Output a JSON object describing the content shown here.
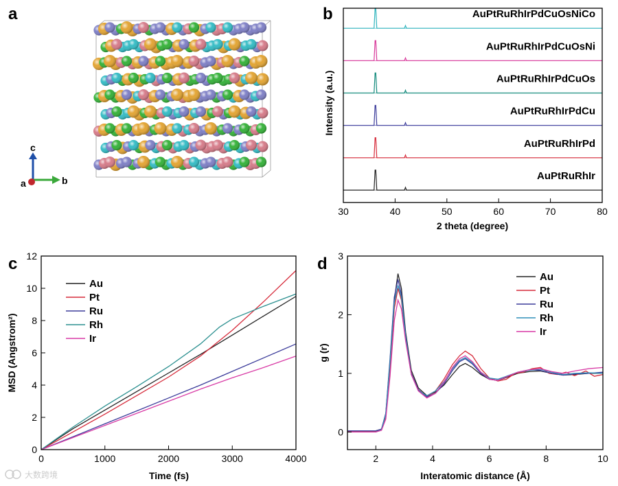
{
  "panel_labels": [
    "a",
    "b",
    "c",
    "d"
  ],
  "watermark": "大数跨境",
  "crystal": {
    "axes_labels": [
      "c",
      "a",
      "b"
    ],
    "atom_colors": {
      "Au": "#e3a534",
      "Pt": "#36b23a",
      "Ru": "#7f80c6",
      "Rh": "#35bcc5",
      "Ir": "#d67c8a"
    }
  },
  "chart_data": [
    {
      "id": "xrd",
      "type": "line",
      "xlabel": "2 theta (degree)",
      "ylabel": "Intensity (a.u.)",
      "xlim": [
        30,
        80
      ],
      "xticks": [
        30,
        40,
        50,
        60,
        70,
        80
      ],
      "peaks": [
        36.2,
        42.0
      ],
      "series": [
        {
          "name": "AuPtRuRhIrPdCuOsNiCo",
          "color": "#2fb4bd"
        },
        {
          "name": "AuPtRuRhIrPdCuOsNi",
          "color": "#d8389a"
        },
        {
          "name": "AuPtRuRhIrPdCuOs",
          "color": "#138a7c"
        },
        {
          "name": "AuPtRuRhIrPdCu",
          "color": "#3b3b9a"
        },
        {
          "name": "AuPtRuRhIrPd",
          "color": "#d62a3a"
        },
        {
          "name": "AuPtRuRhIr",
          "color": "#222222"
        }
      ]
    },
    {
      "id": "msd",
      "type": "line",
      "xlabel": "Time (fs)",
      "ylabel": "MSD (Angstrom²)",
      "xlim": [
        0,
        4000
      ],
      "ylim": [
        0,
        12
      ],
      "xticks": [
        0,
        1000,
        2000,
        3000,
        4000
      ],
      "yticks": [
        0,
        2,
        4,
        6,
        8,
        10,
        12
      ],
      "legend_position": "top-left",
      "series": [
        {
          "name": "Au",
          "color": "#222222",
          "points": [
            [
              0,
              0
            ],
            [
              500,
              1.3
            ],
            [
              1000,
              2.45
            ],
            [
              1500,
              3.6
            ],
            [
              2000,
              4.75
            ],
            [
              2500,
              5.9
            ],
            [
              3000,
              7.1
            ],
            [
              3500,
              8.3
            ],
            [
              4000,
              9.5
            ]
          ]
        },
        {
          "name": "Pt",
          "color": "#d62a3a",
          "points": [
            [
              0,
              0
            ],
            [
              500,
              1.1
            ],
            [
              1000,
              2.2
            ],
            [
              1500,
              3.35
            ],
            [
              2000,
              4.5
            ],
            [
              2500,
              5.8
            ],
            [
              3000,
              7.4
            ],
            [
              3500,
              9.2
            ],
            [
              4000,
              11.1
            ]
          ]
        },
        {
          "name": "Ru",
          "color": "#3b3b9a",
          "points": [
            [
              0,
              0
            ],
            [
              500,
              0.8
            ],
            [
              1000,
              1.6
            ],
            [
              1500,
              2.4
            ],
            [
              2000,
              3.2
            ],
            [
              2500,
              4.0
            ],
            [
              3000,
              4.85
            ],
            [
              3500,
              5.7
            ],
            [
              4000,
              6.55
            ]
          ]
        },
        {
          "name": "Rh",
          "color": "#2a8f8f",
          "points": [
            [
              0,
              0
            ],
            [
              500,
              1.4
            ],
            [
              1000,
              2.7
            ],
            [
              1500,
              3.9
            ],
            [
              2000,
              5.15
            ],
            [
              2500,
              6.55
            ],
            [
              2800,
              7.6
            ],
            [
              3000,
              8.1
            ],
            [
              3500,
              8.9
            ],
            [
              4000,
              9.65
            ]
          ]
        },
        {
          "name": "Ir",
          "color": "#d83aa5",
          "points": [
            [
              0,
              0
            ],
            [
              500,
              0.75
            ],
            [
              1000,
              1.5
            ],
            [
              1500,
              2.25
            ],
            [
              2000,
              3.0
            ],
            [
              2500,
              3.75
            ],
            [
              3000,
              4.45
            ],
            [
              3500,
              5.1
            ],
            [
              4000,
              5.8
            ]
          ]
        }
      ]
    },
    {
      "id": "rdf",
      "type": "line",
      "xlabel": "Interatomic distance (Å)",
      "ylabel": "g (r)",
      "xlim": [
        1,
        10
      ],
      "ylim": [
        -0.3,
        3
      ],
      "xticks": [
        2,
        4,
        6,
        8,
        10
      ],
      "yticks": [
        0,
        1,
        2,
        3
      ],
      "legend_position": "top-right",
      "series": [
        {
          "name": "Au",
          "color": "#222222",
          "points": [
            [
              1,
              0.02
            ],
            [
              1.5,
              0.02
            ],
            [
              2.0,
              0.02
            ],
            [
              2.2,
              0.05
            ],
            [
              2.35,
              0.3
            ],
            [
              2.5,
              1.2
            ],
            [
              2.65,
              2.25
            ],
            [
              2.78,
              2.7
            ],
            [
              2.9,
              2.45
            ],
            [
              3.05,
              1.7
            ],
            [
              3.25,
              1.05
            ],
            [
              3.5,
              0.75
            ],
            [
              3.8,
              0.62
            ],
            [
              4.1,
              0.68
            ],
            [
              4.4,
              0.8
            ],
            [
              4.7,
              0.98
            ],
            [
              4.95,
              1.12
            ],
            [
              5.15,
              1.17
            ],
            [
              5.4,
              1.1
            ],
            [
              5.7,
              0.98
            ],
            [
              6.0,
              0.9
            ],
            [
              6.3,
              0.88
            ],
            [
              6.6,
              0.93
            ],
            [
              7.0,
              1.0
            ],
            [
              7.4,
              1.03
            ],
            [
              7.8,
              1.04
            ],
            [
              8.2,
              1.0
            ],
            [
              8.6,
              0.97
            ],
            [
              9.0,
              0.98
            ],
            [
              9.5,
              1.0
            ],
            [
              10,
              1.0
            ]
          ]
        },
        {
          "name": "Pt",
          "color": "#d62a3a",
          "points": [
            [
              1,
              0.01
            ],
            [
              1.5,
              0.01
            ],
            [
              2.0,
              0.01
            ],
            [
              2.2,
              0.04
            ],
            [
              2.35,
              0.25
            ],
            [
              2.5,
              1.1
            ],
            [
              2.65,
              2.1
            ],
            [
              2.78,
              2.45
            ],
            [
              2.9,
              2.25
            ],
            [
              3.05,
              1.6
            ],
            [
              3.25,
              1.0
            ],
            [
              3.5,
              0.72
            ],
            [
              3.8,
              0.6
            ],
            [
              4.1,
              0.7
            ],
            [
              4.4,
              0.9
            ],
            [
              4.7,
              1.15
            ],
            [
              4.95,
              1.3
            ],
            [
              5.15,
              1.38
            ],
            [
              5.4,
              1.3
            ],
            [
              5.7,
              1.08
            ],
            [
              6.0,
              0.92
            ],
            [
              6.3,
              0.87
            ],
            [
              6.6,
              0.9
            ],
            [
              6.9,
              1.0
            ],
            [
              7.2,
              1.02
            ],
            [
              7.5,
              1.08
            ],
            [
              7.8,
              1.1
            ],
            [
              8.1,
              1.0
            ],
            [
              8.4,
              0.98
            ],
            [
              8.7,
              1.02
            ],
            [
              9.0,
              0.96
            ],
            [
              9.4,
              1.04
            ],
            [
              9.7,
              0.95
            ],
            [
              10,
              0.98
            ]
          ]
        },
        {
          "name": "Ru",
          "color": "#3b3b9a",
          "points": [
            [
              1,
              0.02
            ],
            [
              1.5,
              0.02
            ],
            [
              2.0,
              0.02
            ],
            [
              2.2,
              0.05
            ],
            [
              2.35,
              0.32
            ],
            [
              2.5,
              1.25
            ],
            [
              2.65,
              2.3
            ],
            [
              2.78,
              2.6
            ],
            [
              2.9,
              2.35
            ],
            [
              3.05,
              1.65
            ],
            [
              3.25,
              1.0
            ],
            [
              3.5,
              0.72
            ],
            [
              3.8,
              0.6
            ],
            [
              4.1,
              0.66
            ],
            [
              4.4,
              0.82
            ],
            [
              4.7,
              1.05
            ],
            [
              4.95,
              1.2
            ],
            [
              5.15,
              1.25
            ],
            [
              5.4,
              1.16
            ],
            [
              5.7,
              1.0
            ],
            [
              6.0,
              0.9
            ],
            [
              6.3,
              0.88
            ],
            [
              6.6,
              0.95
            ],
            [
              7.0,
              1.02
            ],
            [
              7.4,
              1.06
            ],
            [
              7.8,
              1.05
            ],
            [
              8.2,
              1.0
            ],
            [
              8.6,
              0.97
            ],
            [
              9.0,
              0.99
            ],
            [
              9.5,
              1.0
            ],
            [
              10,
              1.02
            ]
          ]
        },
        {
          "name": "Rh",
          "color": "#2e8fb8",
          "points": [
            [
              1,
              0.0
            ],
            [
              1.5,
              0.0
            ],
            [
              2.0,
              0.0
            ],
            [
              2.2,
              0.04
            ],
            [
              2.35,
              0.3
            ],
            [
              2.5,
              1.2
            ],
            [
              2.65,
              2.2
            ],
            [
              2.78,
              2.5
            ],
            [
              2.9,
              2.3
            ],
            [
              3.05,
              1.62
            ],
            [
              3.25,
              0.98
            ],
            [
              3.5,
              0.7
            ],
            [
              3.8,
              0.62
            ],
            [
              4.1,
              0.7
            ],
            [
              4.4,
              0.86
            ],
            [
              4.7,
              1.08
            ],
            [
              4.95,
              1.22
            ],
            [
              5.15,
              1.27
            ],
            [
              5.4,
              1.18
            ],
            [
              5.7,
              1.02
            ],
            [
              6.0,
              0.92
            ],
            [
              6.3,
              0.9
            ],
            [
              6.6,
              0.95
            ],
            [
              7.0,
              1.02
            ],
            [
              7.4,
              1.05
            ],
            [
              7.8,
              1.07
            ],
            [
              8.2,
              1.02
            ],
            [
              8.6,
              0.98
            ],
            [
              9.0,
              1.0
            ],
            [
              9.5,
              1.01
            ],
            [
              10,
              1.0
            ]
          ]
        },
        {
          "name": "Ir",
          "color": "#d83aa5",
          "points": [
            [
              1,
              0.0
            ],
            [
              1.5,
              0.0
            ],
            [
              2.0,
              0.0
            ],
            [
              2.2,
              0.03
            ],
            [
              2.35,
              0.22
            ],
            [
              2.5,
              0.95
            ],
            [
              2.65,
              1.9
            ],
            [
              2.78,
              2.25
            ],
            [
              2.9,
              2.1
            ],
            [
              3.05,
              1.55
            ],
            [
              3.25,
              0.98
            ],
            [
              3.5,
              0.7
            ],
            [
              3.8,
              0.58
            ],
            [
              4.1,
              0.66
            ],
            [
              4.4,
              0.85
            ],
            [
              4.7,
              1.1
            ],
            [
              4.95,
              1.25
            ],
            [
              5.15,
              1.3
            ],
            [
              5.4,
              1.2
            ],
            [
              5.7,
              1.02
            ],
            [
              6.0,
              0.9
            ],
            [
              6.3,
              0.88
            ],
            [
              6.6,
              0.94
            ],
            [
              7.0,
              1.02
            ],
            [
              7.4,
              1.06
            ],
            [
              7.8,
              1.08
            ],
            [
              8.2,
              1.03
            ],
            [
              8.6,
              1.0
            ],
            [
              9.0,
              1.04
            ],
            [
              9.5,
              1.08
            ],
            [
              10,
              1.1
            ]
          ]
        }
      ]
    }
  ]
}
